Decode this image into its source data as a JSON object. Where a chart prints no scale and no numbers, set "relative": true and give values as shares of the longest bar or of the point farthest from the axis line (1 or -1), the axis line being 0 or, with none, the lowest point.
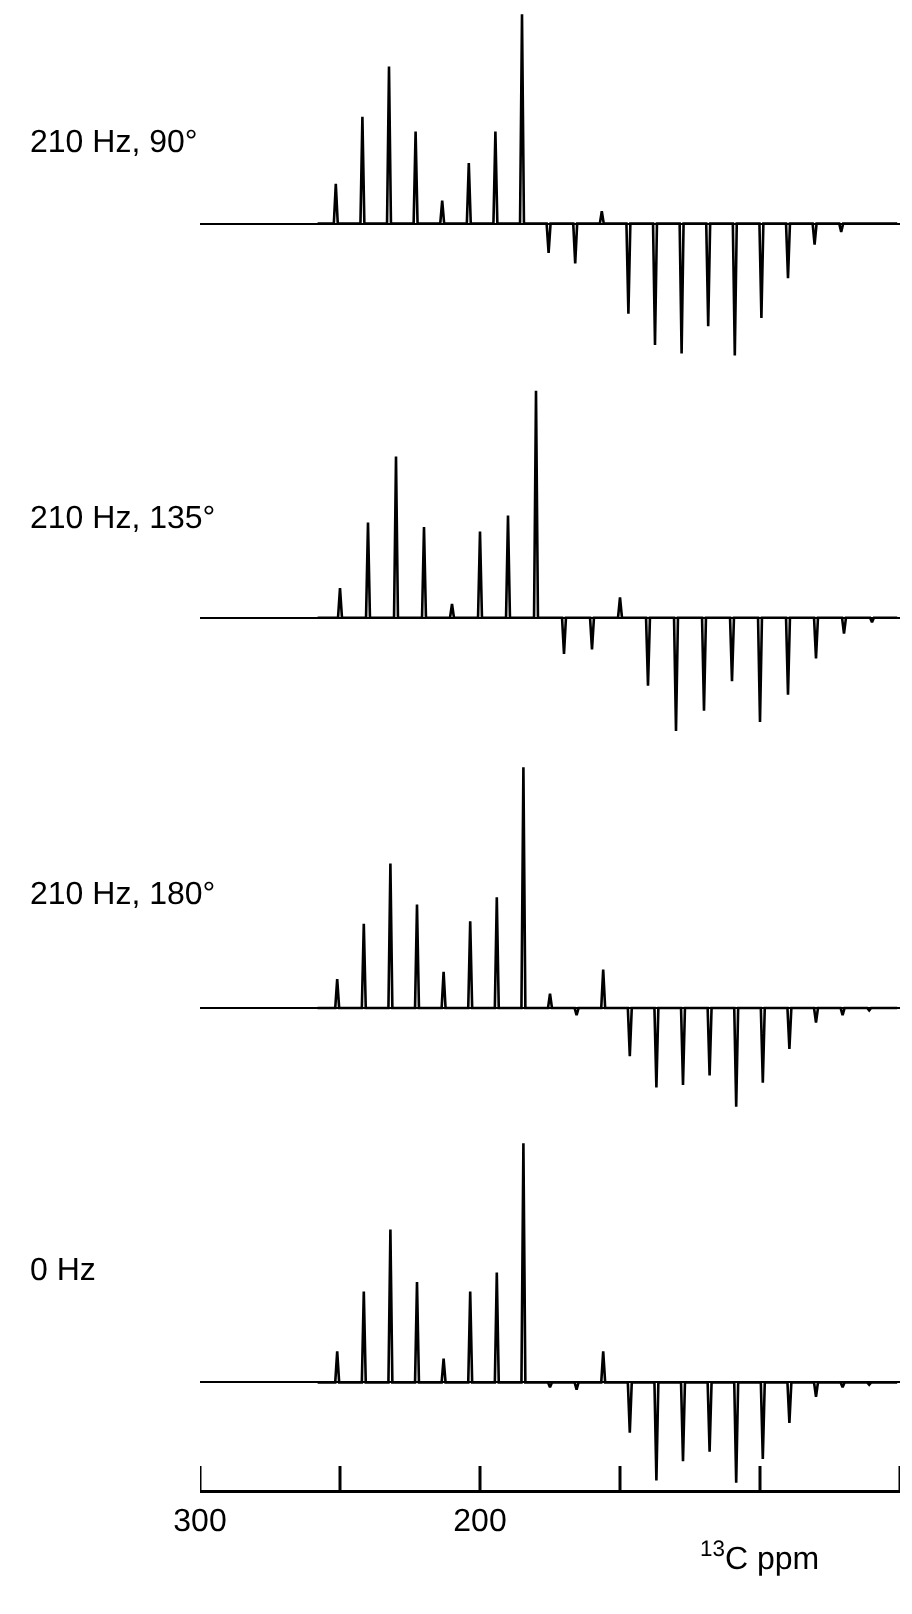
{
  "chart_data": [
    {
      "type": "line",
      "title": "210 Hz, 90°",
      "relative": true,
      "color": "#000000",
      "marker": "none",
      "grid": false,
      "legend": false,
      "tick_labels": false,
      "xlim": [
        300,
        50
      ],
      "x": [
        258,
        252.2,
        251.5,
        250.8,
        242.7,
        242,
        241.3,
        233.2,
        232.5,
        231.8,
        223.7,
        223,
        222.3,
        214.2,
        213.5,
        212.8,
        204.7,
        204,
        203.3,
        195.2,
        194.5,
        193.8,
        185.7,
        185,
        184.3,
        176.2,
        175.5,
        174.8,
        166.7,
        166,
        165.3,
        157.2,
        156.5,
        155.8,
        147.7,
        147,
        146.3,
        138.2,
        137.5,
        136.8,
        128.7,
        128,
        127.3,
        119.2,
        118.5,
        117.8,
        109.7,
        109,
        108.3,
        100.2,
        99.5,
        98.8,
        90.7,
        90,
        89.3,
        81.2,
        80.5,
        79.8,
        71.7,
        71,
        70.3,
        51
      ],
      "values": [
        0,
        0,
        0.19,
        0,
        0,
        0.51,
        0,
        0,
        0.75,
        0,
        0,
        0.44,
        0,
        0,
        0.11,
        0,
        0,
        0.29,
        0,
        0,
        0.44,
        0,
        0,
        1,
        0,
        0,
        -0.14,
        0,
        0,
        -0.19,
        0,
        0,
        0.06,
        0,
        0,
        -0.43,
        0,
        0,
        -0.58,
        0,
        0,
        -0.62,
        0,
        0,
        -0.49,
        0,
        0,
        -0.63,
        0,
        0,
        -0.45,
        0,
        0,
        -0.26,
        0,
        0,
        -0.1,
        0,
        0,
        -0.04,
        0,
        0
      ]
    },
    {
      "type": "line",
      "title": "210 Hz, 135°",
      "relative": true,
      "color": "#000000",
      "marker": "none",
      "grid": false,
      "legend": false,
      "tick_labels": false,
      "xlim": [
        300,
        50
      ],
      "x": [
        258,
        250.7,
        250,
        249.3,
        240.7,
        240,
        239.3,
        230.7,
        230,
        229.3,
        220.7,
        220,
        219.3,
        210.7,
        210,
        209.3,
        200.7,
        200,
        199.3,
        190.7,
        190,
        189.3,
        180.7,
        180,
        179.3,
        170.7,
        170,
        169.3,
        160.7,
        160,
        159.3,
        150.7,
        150,
        149.3,
        140.7,
        140,
        139.3,
        130.7,
        130,
        129.3,
        120.7,
        120,
        119.3,
        110.7,
        110,
        109.3,
        100.7,
        100,
        99.3,
        90.7,
        90,
        89.3,
        80.7,
        80,
        79.3,
        70.7,
        70,
        69.3,
        60.7,
        60,
        59.3,
        51
      ],
      "values": [
        0,
        0,
        0.13,
        0,
        0,
        0.42,
        0,
        0,
        0.71,
        0,
        0,
        0.4,
        0,
        0,
        0.06,
        0,
        0,
        0.38,
        0,
        0,
        0.45,
        0,
        0,
        1,
        0,
        0,
        -0.16,
        0,
        0,
        -0.14,
        0,
        0,
        0.09,
        0,
        0,
        -0.3,
        0,
        0,
        -0.5,
        0,
        0,
        -0.41,
        0,
        0,
        -0.28,
        0,
        0,
        -0.46,
        0,
        0,
        -0.34,
        0,
        0,
        -0.18,
        0,
        0,
        -0.07,
        0,
        0,
        -0.02,
        0,
        0
      ]
    },
    {
      "type": "line",
      "title": "210 Hz, 180°",
      "relative": true,
      "color": "#000000",
      "marker": "none",
      "grid": false,
      "legend": false,
      "tick_labels": false,
      "xlim": [
        300,
        50
      ],
      "x": [
        258,
        251.7,
        251,
        250.3,
        242.2,
        241.5,
        240.8,
        232.7,
        232,
        231.3,
        223.2,
        222.5,
        221.8,
        213.7,
        213,
        212.3,
        204.2,
        203.5,
        202.8,
        194.7,
        194,
        193.3,
        185.2,
        184.5,
        183.8,
        175.7,
        175,
        174.3,
        166.2,
        165.5,
        164.8,
        156.7,
        156,
        155.3,
        147.2,
        146.5,
        145.8,
        137.7,
        137,
        136.3,
        128.2,
        127.5,
        126.8,
        118.7,
        118,
        117.3,
        109.2,
        108.5,
        107.8,
        99.7,
        99,
        98.3,
        90.2,
        89.5,
        88.8,
        80.7,
        80,
        79.3,
        71.2,
        70.5,
        69.8,
        61.7,
        61,
        60.3,
        51
      ],
      "values": [
        0,
        0,
        0.12,
        0,
        0,
        0.35,
        0,
        0,
        0.6,
        0,
        0,
        0.43,
        0,
        0,
        0.15,
        0,
        0,
        0.36,
        0,
        0,
        0.46,
        0,
        0,
        1,
        0,
        0,
        0.06,
        0,
        0,
        -0.03,
        0,
        0,
        0.16,
        0,
        0,
        -0.2,
        0,
        0,
        -0.33,
        0,
        0,
        -0.32,
        0,
        0,
        -0.28,
        0,
        0,
        -0.41,
        0,
        0,
        -0.31,
        0,
        0,
        -0.17,
        0,
        0,
        -0.06,
        0,
        0,
        -0.03,
        0,
        0,
        -0.01,
        0,
        0
      ]
    },
    {
      "type": "line",
      "title": "0 Hz",
      "xlabel": "$^{13}$C ppm",
      "relative": true,
      "color": "#000000",
      "marker": "none",
      "grid": false,
      "legend": false,
      "tick_labels": "x",
      "xlim": [
        300,
        50
      ],
      "xticks": [
        300,
        {
          "value": 250,
          "label": null
        },
        200,
        {
          "value": 150,
          "label": null
        },
        {
          "value": 100,
          "label": null
        },
        {
          "value": 50,
          "label": null
        }
      ],
      "x": [
        258,
        251.7,
        251,
        250.3,
        242.2,
        241.5,
        240.8,
        232.7,
        232,
        231.3,
        223.2,
        222.5,
        221.8,
        213.7,
        213,
        212.3,
        204.2,
        203.5,
        202.8,
        194.7,
        194,
        193.3,
        185.2,
        184.5,
        183.8,
        175.7,
        175,
        174.3,
        166.2,
        165.5,
        164.8,
        156.7,
        156,
        155.3,
        147.2,
        146.5,
        145.8,
        137.7,
        137,
        136.3,
        128.2,
        127.5,
        126.8,
        118.7,
        118,
        117.3,
        109.2,
        108.5,
        107.8,
        99.7,
        99,
        98.3,
        90.2,
        89.5,
        88.8,
        80.7,
        80,
        79.3,
        71.2,
        70.5,
        69.8,
        61.7,
        61,
        60.3,
        51
      ],
      "values": [
        0,
        0,
        0.13,
        0,
        0,
        0.38,
        0,
        0,
        0.64,
        0,
        0,
        0.42,
        0,
        0,
        0.1,
        0,
        0,
        0.38,
        0,
        0,
        0.46,
        0,
        0,
        1,
        0,
        0,
        -0.02,
        0,
        0,
        -0.03,
        0,
        0,
        0.13,
        0,
        0,
        -0.21,
        0,
        0,
        -0.41,
        0,
        0,
        -0.33,
        0,
        0,
        -0.29,
        0,
        0,
        -0.42,
        0,
        0,
        -0.32,
        0,
        0,
        -0.17,
        0,
        0,
        -0.06,
        0,
        0,
        -0.02,
        0,
        0,
        -0.01,
        0,
        0
      ]
    }
  ]
}
